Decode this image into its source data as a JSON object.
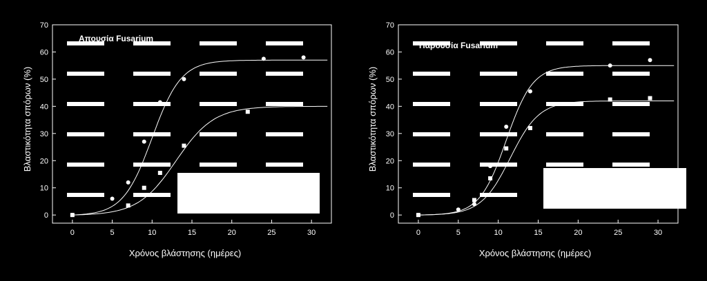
{
  "theme": {
    "background": "#000000",
    "foreground": "#ffffff"
  },
  "chart_data": [
    {
      "type": "scatter",
      "title": "Απουσία Fusarium",
      "xlabel": "Χρόνος βλάστησης (ημέρες)",
      "ylabel": "Βλαστικότητα σπόρων (%)",
      "xlim": [
        -2.5,
        32.5
      ],
      "ylim": [
        -3,
        70
      ],
      "xticks": [
        0,
        5,
        10,
        15,
        20,
        25,
        30
      ],
      "yticks": [
        0,
        10,
        20,
        30,
        40,
        50,
        60,
        70
      ],
      "grid": false,
      "legend": "none",
      "series": [
        {
          "marker": "circle",
          "x": [
            0,
            5,
            7,
            9,
            11,
            14,
            24,
            29
          ],
          "y": [
            0,
            6,
            12,
            27,
            41.5,
            50,
            57.5,
            58
          ],
          "fit": {
            "model": "logistic",
            "max": 57,
            "x50": 10,
            "k": 0.55
          }
        },
        {
          "marker": "square",
          "x": [
            0,
            7,
            9,
            11,
            14,
            22
          ],
          "y": [
            0,
            3.5,
            10,
            15.5,
            25.5,
            38
          ],
          "fit": {
            "model": "logistic",
            "max": 40,
            "x50": 13,
            "k": 0.42
          }
        }
      ]
    },
    {
      "type": "scatter",
      "title": "Παρουσία Fusarium",
      "xlabel": "Χρόνος βλάστησης (ημέρες)",
      "ylabel": "Βλαστικότητα σπόρων (%)",
      "xlim": [
        -2.5,
        32.5
      ],
      "ylim": [
        -3,
        70
      ],
      "xticks": [
        0,
        5,
        10,
        15,
        20,
        25,
        30
      ],
      "yticks": [
        0,
        10,
        20,
        30,
        40,
        50,
        60,
        70
      ],
      "grid": false,
      "legend": "none",
      "series": [
        {
          "marker": "circle",
          "x": [
            0,
            5,
            7,
            9,
            11,
            14,
            24,
            29
          ],
          "y": [
            0,
            2,
            4,
            18,
            32.5,
            45.5,
            55,
            57
          ],
          "fit": {
            "model": "logistic",
            "max": 55,
            "x50": 11,
            "k": 0.6
          }
        },
        {
          "marker": "square",
          "x": [
            0,
            7,
            9,
            11,
            14,
            24,
            29
          ],
          "y": [
            0,
            5.5,
            13.5,
            24.5,
            32,
            42.5,
            43
          ],
          "fit": {
            "model": "logistic",
            "max": 42,
            "x50": 11.5,
            "k": 0.55
          }
        }
      ]
    }
  ]
}
